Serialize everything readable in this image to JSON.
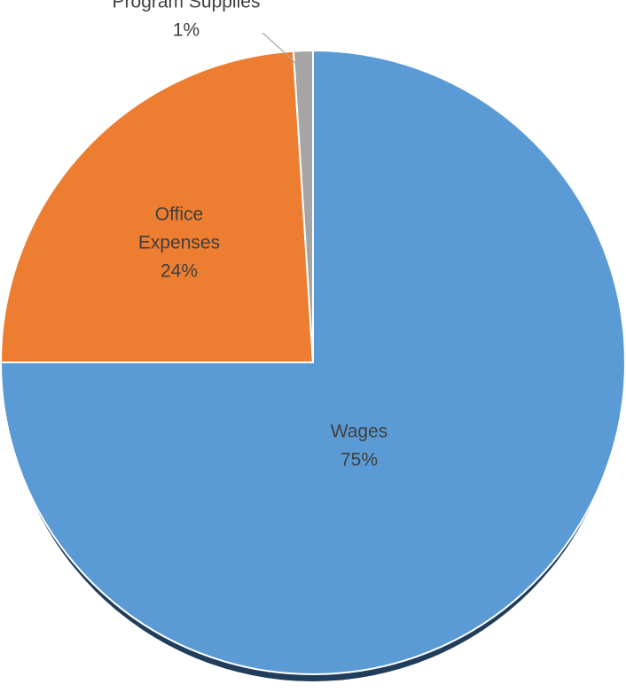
{
  "chart_data": {
    "type": "pie",
    "title": "",
    "slices": [
      {
        "label": "Wages",
        "value": 75,
        "value_label": "75%",
        "color": "#5B9BD5"
      },
      {
        "label": "Office Expenses",
        "value": 24,
        "value_label": "24%",
        "color": "#ED7D31"
      },
      {
        "label": "Program Supplies",
        "value": 1,
        "value_label": "1%",
        "color": "#A5A5A5"
      }
    ],
    "legend": "none",
    "data_labels": "category-and-percent"
  }
}
